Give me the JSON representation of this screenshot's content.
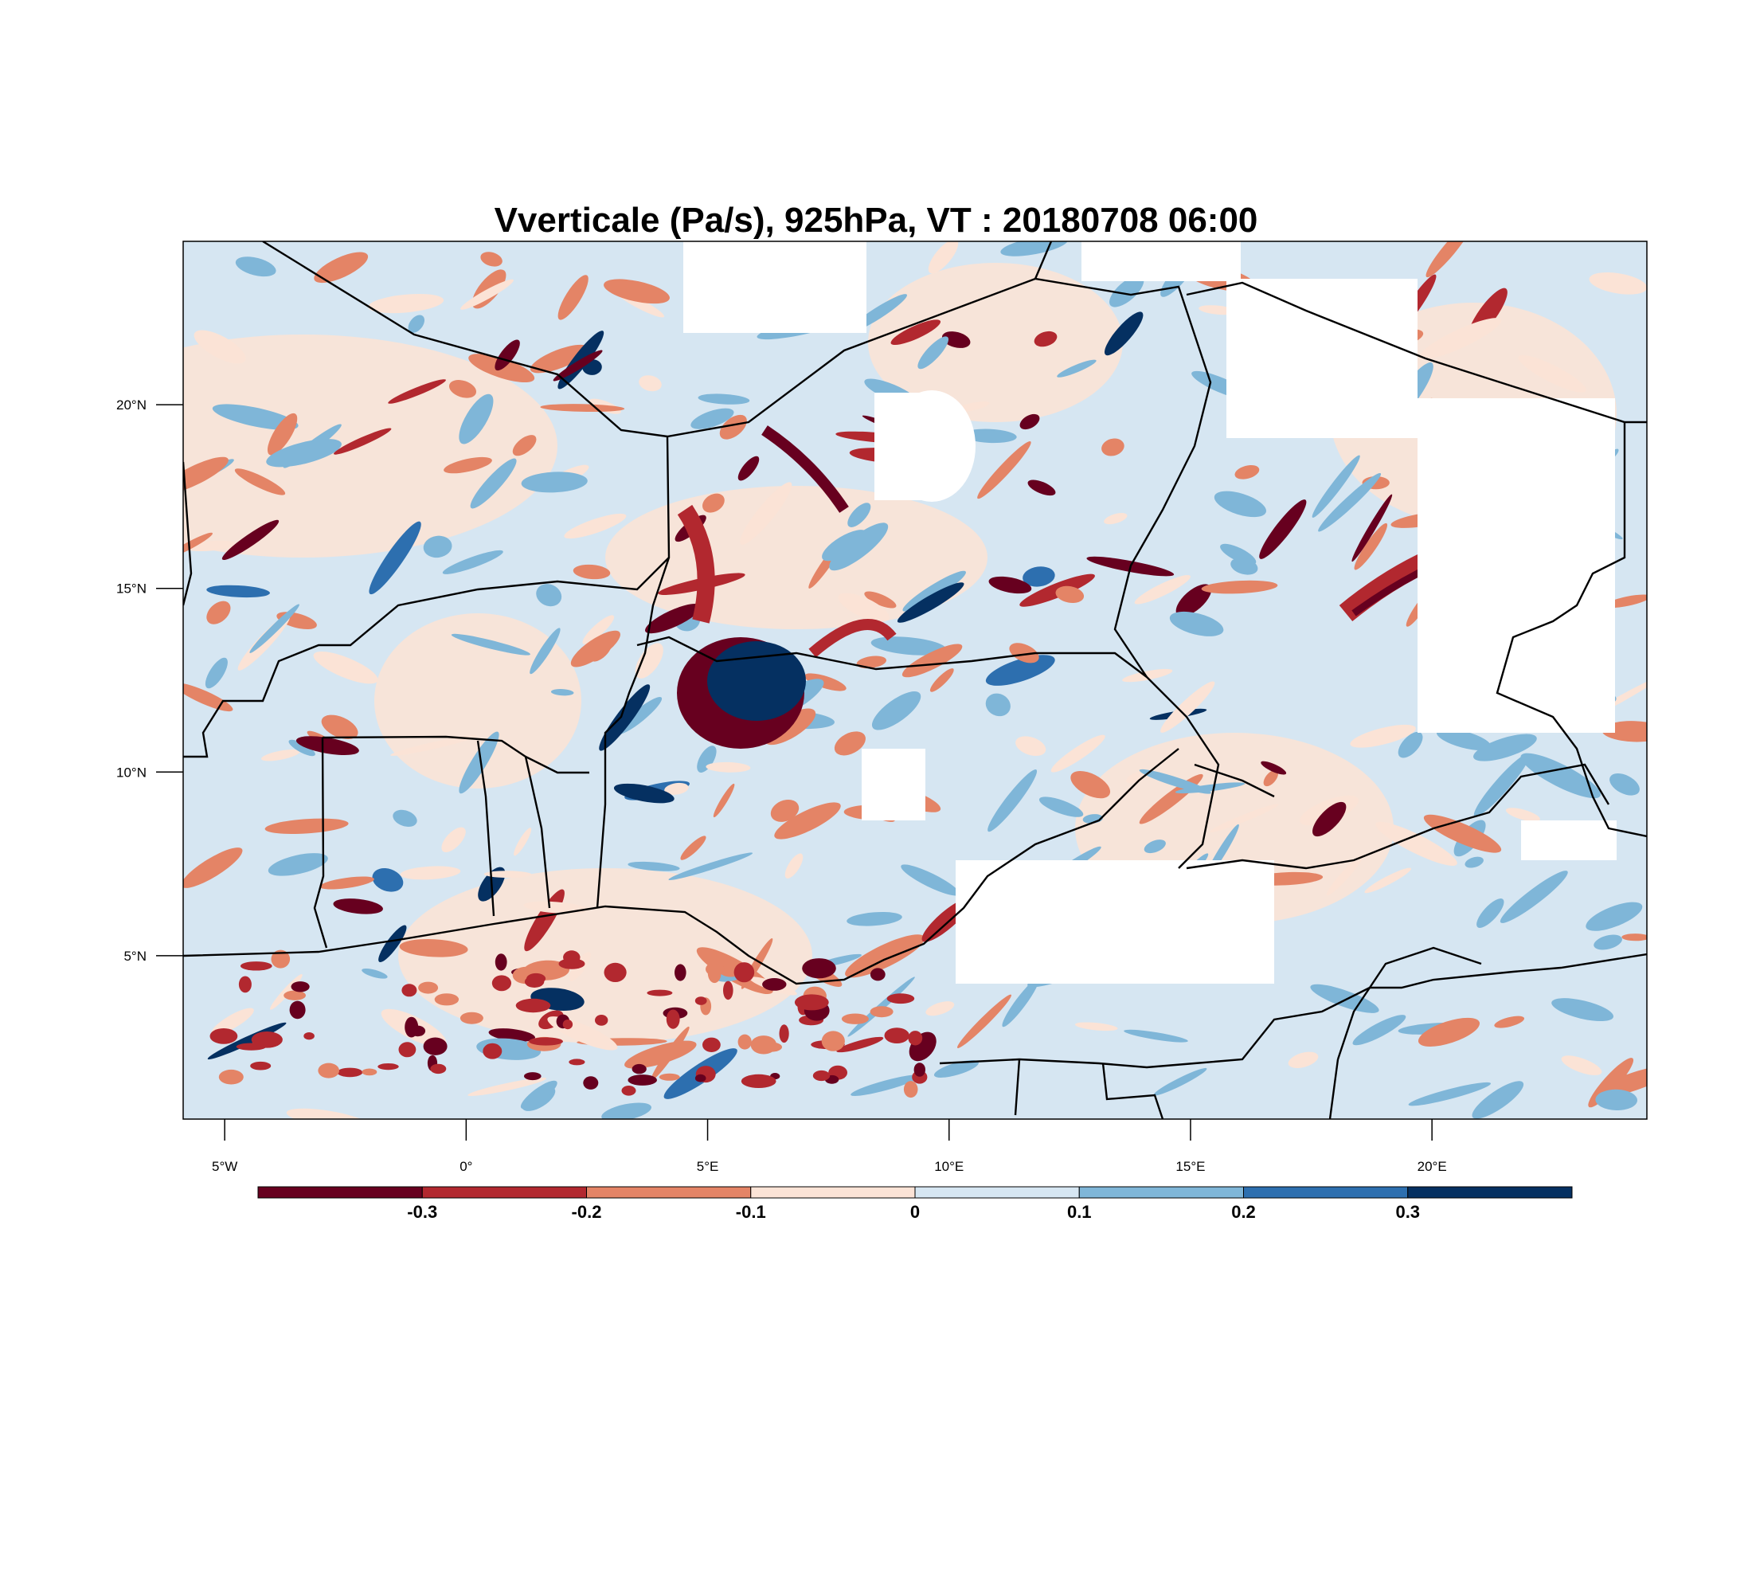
{
  "title": "Vverticale (Pa/s), 925hPa, VT : 20180708  06:00",
  "map": {
    "lon_range": [
      -5.86,
      24.45
    ],
    "lat_range": [
      0.55,
      24.45
    ],
    "lon_ticks": [
      {
        "value": -5,
        "label": "5°W"
      },
      {
        "value": 0,
        "label": "0°"
      },
      {
        "value": 5,
        "label": "5°E"
      },
      {
        "value": 10,
        "label": "10°E"
      },
      {
        "value": 15,
        "label": "15°E"
      },
      {
        "value": 20,
        "label": "20°E"
      }
    ],
    "lat_ticks": [
      {
        "value": 20,
        "label": "20°N"
      },
      {
        "value": 15,
        "label": "15°N"
      },
      {
        "value": 10,
        "label": "10°N"
      },
      {
        "value": 5,
        "label": "5°N"
      }
    ]
  },
  "colorbar": {
    "colors": [
      "#67001f",
      "#b2282f",
      "#e48466",
      "#fbe3d6",
      "#d6e6f2",
      "#7fb6d8",
      "#2d6faf",
      "#053061"
    ],
    "boundaries": [
      {
        "value": -0.3,
        "label": "-0.3"
      },
      {
        "value": -0.2,
        "label": "-0.2"
      },
      {
        "value": -0.1,
        "label": "-0.1"
      },
      {
        "value": 0,
        "label": "0"
      },
      {
        "value": 0.1,
        "label": "0.1"
      },
      {
        "value": 0.2,
        "label": "0.2"
      },
      {
        "value": 0.3,
        "label": "0.3"
      }
    ]
  }
}
